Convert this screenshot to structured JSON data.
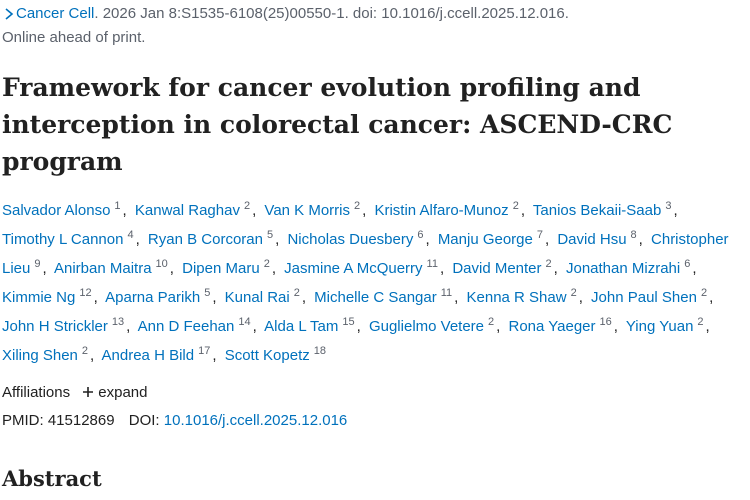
{
  "citation": {
    "journal": "Cancer Cell",
    "details": ". 2026 Jan 8:S1535-6108(25)00550-1. doi: 10.1016/j.ccell.2025.12.016.",
    "status": "Online ahead of print."
  },
  "title": "Framework for cancer evolution profiling and interception in colorectal cancer: ASCEND-CRC program",
  "authors": [
    {
      "name": "Salvador Alonso",
      "aff": "1"
    },
    {
      "name": "Kanwal Raghav",
      "aff": "2"
    },
    {
      "name": "Van K Morris",
      "aff": "2"
    },
    {
      "name": "Kristin Alfaro-Munoz",
      "aff": "2"
    },
    {
      "name": "Tanios Bekaii-Saab",
      "aff": "3"
    },
    {
      "name": "Timothy L Cannon",
      "aff": "4"
    },
    {
      "name": "Ryan B Corcoran",
      "aff": "5"
    },
    {
      "name": "Nicholas Duesbery",
      "aff": "6"
    },
    {
      "name": "Manju George",
      "aff": "7"
    },
    {
      "name": "David Hsu",
      "aff": "8"
    },
    {
      "name": "Christopher Lieu",
      "aff": "9"
    },
    {
      "name": "Anirban Maitra",
      "aff": "10"
    },
    {
      "name": "Dipen Maru",
      "aff": "2"
    },
    {
      "name": "Jasmine A McQuerry",
      "aff": "11"
    },
    {
      "name": "David Menter",
      "aff": "2"
    },
    {
      "name": "Jonathan Mizrahi",
      "aff": "6"
    },
    {
      "name": "Kimmie Ng",
      "aff": "12"
    },
    {
      "name": "Aparna Parikh",
      "aff": "5"
    },
    {
      "name": "Kunal Rai",
      "aff": "2"
    },
    {
      "name": "Michelle C Sangar",
      "aff": "11"
    },
    {
      "name": "Kenna R Shaw",
      "aff": "2"
    },
    {
      "name": "John Paul Shen",
      "aff": "2"
    },
    {
      "name": "John H Strickler",
      "aff": "13"
    },
    {
      "name": "Ann D Feehan",
      "aff": "14"
    },
    {
      "name": "Alda L Tam",
      "aff": "15"
    },
    {
      "name": "Guglielmo Vetere",
      "aff": "2"
    },
    {
      "name": "Rona Yaeger",
      "aff": "16"
    },
    {
      "name": "Ying Yuan",
      "aff": "2"
    },
    {
      "name": "Xiling Shen",
      "aff": "2"
    },
    {
      "name": "Andrea H Bild",
      "aff": "17"
    },
    {
      "name": "Scott Kopetz",
      "aff": "18"
    }
  ],
  "affiliations": {
    "label": "Affiliations",
    "toggle": "expand"
  },
  "identifiers": {
    "pmid_label": "PMID:",
    "pmid": "41512869",
    "doi_label": "DOI:",
    "doi": "10.1016/j.ccell.2025.12.016"
  },
  "abstract": {
    "heading": "Abstract"
  }
}
